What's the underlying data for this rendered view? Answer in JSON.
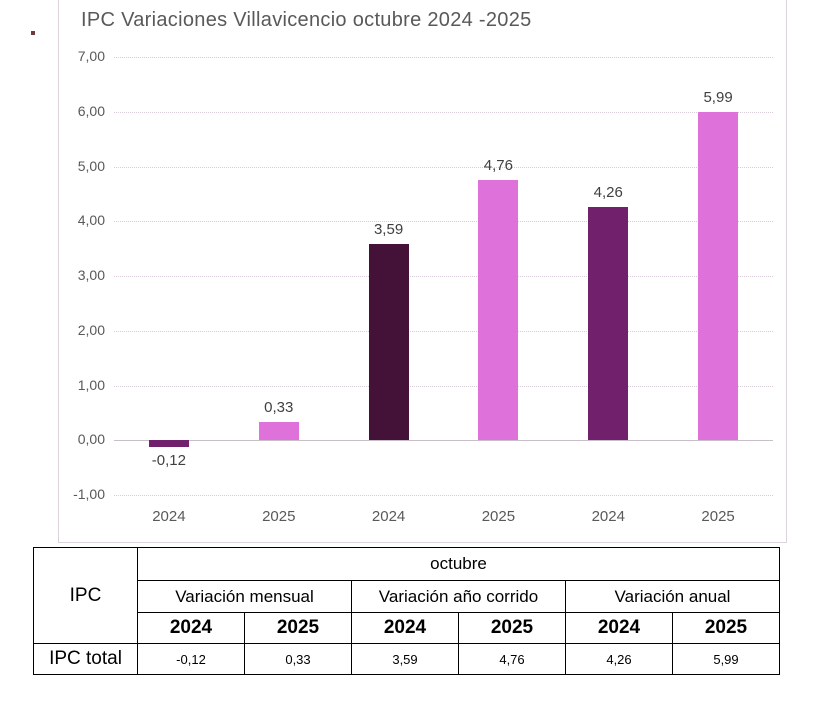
{
  "chart_data": {
    "type": "bar",
    "title": "IPC Variaciones Villavicencio octubre 2024 -2025",
    "categories": [
      "2024",
      "2025",
      "2024",
      "2025",
      "2024",
      "2025"
    ],
    "groups": [
      "Variación mensual",
      "Variación año corrido",
      "Variación anual"
    ],
    "values": [
      -0.12,
      0.33,
      3.59,
      4.76,
      4.26,
      5.99
    ],
    "value_labels": [
      "-0,12",
      "0,33",
      "3,59",
      "4,76",
      "4,26",
      "5,99"
    ],
    "bar_colors": [
      "#71206b",
      "#de71da",
      "#441239",
      "#de71da",
      "#71206b",
      "#de71da"
    ],
    "y_tick_values": [
      7,
      6,
      5,
      4,
      3,
      2,
      1,
      0,
      -1
    ],
    "y_tick_labels": [
      "7,00",
      "6,00",
      "5,00",
      "4,00",
      "3,00",
      "2,00",
      "1,00",
      "0,00",
      "-1,00"
    ],
    "ylim": [
      -1,
      7
    ],
    "grid": true,
    "legend": "none",
    "axis_text_color": "#595959",
    "value_label_color": "#404040"
  },
  "table": {
    "corner_label": "IPC",
    "month_header": "octubre",
    "group_headers": [
      "Variación mensual",
      "Variación año corrido",
      "Variación anual"
    ],
    "year_headers": [
      "2024",
      "2025",
      "2024",
      "2025",
      "2024",
      "2025"
    ],
    "row_label": "IPC total",
    "row_values": [
      "-0,12",
      "0,33",
      "3,59",
      "4,76",
      "4,26",
      "5,99"
    ]
  }
}
